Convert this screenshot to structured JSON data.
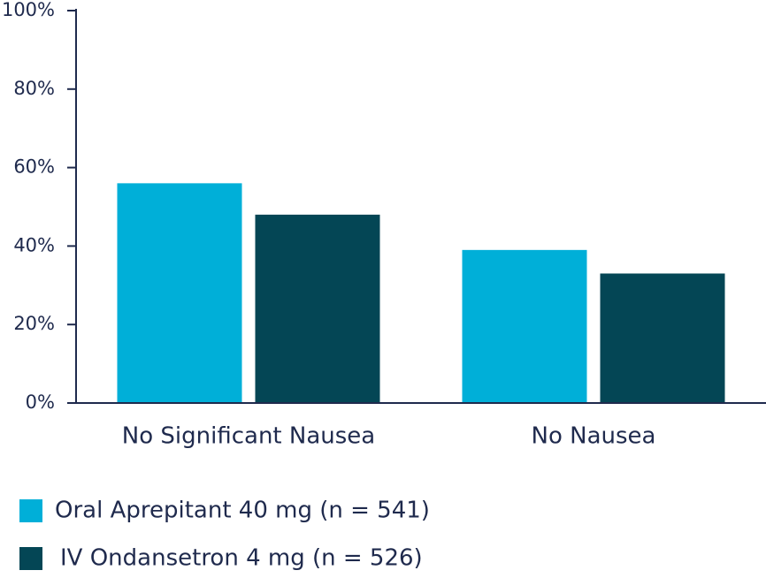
{
  "chart_data": {
    "type": "bar",
    "categories": [
      "No Significant Nausea",
      "No Nausea"
    ],
    "series": [
      {
        "name": "Oral Aprepitant 40 mg (n = 541)",
        "color": "#00afd8",
        "values": [
          56,
          39
        ]
      },
      {
        "name": "IV Ondansetron 4 mg (n = 526)",
        "color": "#044655",
        "values": [
          48,
          33
        ]
      }
    ],
    "ylim": [
      0,
      100
    ],
    "yticks": [
      {
        "value": 0,
        "label": "0%"
      },
      {
        "value": 20,
        "label": "20%"
      },
      {
        "value": 40,
        "label": "40%"
      },
      {
        "value": 60,
        "label": "60%"
      },
      {
        "value": 80,
        "label": "80%"
      },
      {
        "value": 100,
        "label": "100%"
      }
    ],
    "grid": false
  }
}
